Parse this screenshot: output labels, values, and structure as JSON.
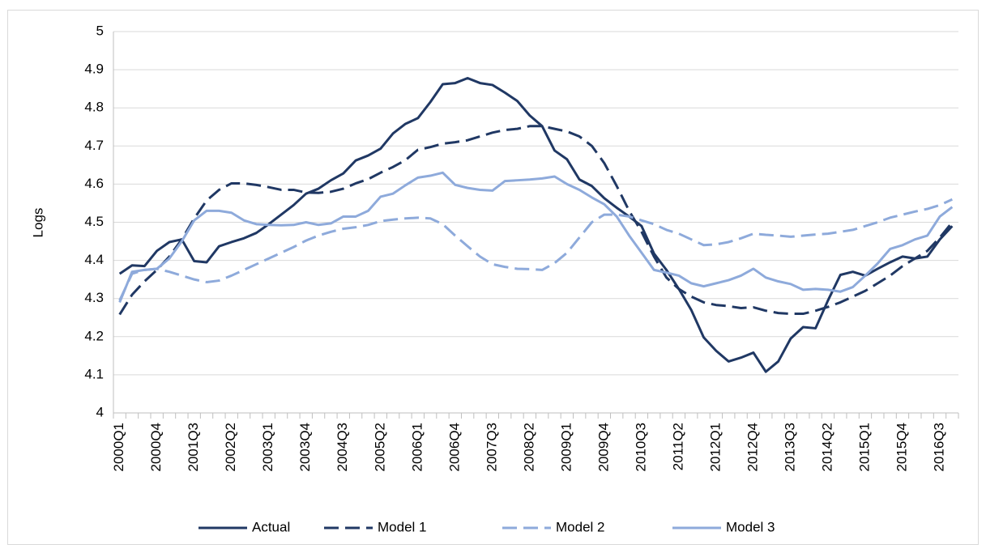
{
  "chart_data": {
    "type": "line",
    "ylabel": "Logs",
    "categories": [
      "2000Q1",
      null,
      null,
      "2000Q4",
      null,
      null,
      "2001Q3",
      null,
      null,
      "2002Q2",
      null,
      null,
      "2003Q1",
      null,
      null,
      "2003Q4",
      null,
      null,
      "2004Q3",
      null,
      null,
      "2005Q2",
      null,
      null,
      "2006Q1",
      null,
      null,
      "2006Q4",
      null,
      null,
      "2007Q3",
      null,
      null,
      "2008Q2",
      null,
      null,
      "2009Q1",
      null,
      null,
      "2009Q4",
      null,
      null,
      "2010Q3",
      null,
      null,
      "2011Q2",
      null,
      null,
      "2012Q1",
      null,
      null,
      "2012Q4",
      null,
      null,
      "2013Q3",
      null,
      null,
      "2014Q2",
      null,
      null,
      "2015Q1",
      null,
      null,
      "2015Q4",
      null,
      null,
      "2016Q3",
      null
    ],
    "series": [
      {
        "name": "Actual",
        "color": "#203864",
        "dash": false,
        "values": [
          4.365,
          4.387,
          4.385,
          4.425,
          4.448,
          4.455,
          4.398,
          4.395,
          4.437,
          4.448,
          4.458,
          4.472,
          4.495,
          4.52,
          4.545,
          4.575,
          4.588,
          4.61,
          4.628,
          4.662,
          4.675,
          4.693,
          4.733,
          4.758,
          4.773,
          4.815,
          4.862,
          4.865,
          4.878,
          4.865,
          4.86,
          4.84,
          4.818,
          4.78,
          4.752,
          4.688,
          4.665,
          4.612,
          4.595,
          4.563,
          4.538,
          4.515,
          4.49,
          4.418,
          4.375,
          4.325,
          4.27,
          4.198,
          4.163,
          4.135,
          4.145,
          4.158,
          4.108,
          4.135,
          4.195,
          4.225,
          4.222,
          4.295,
          4.362,
          4.37,
          4.36,
          4.378,
          4.395,
          4.41,
          4.405,
          4.41,
          4.455,
          4.49
        ]
      },
      {
        "name": "Model 1",
        "color": "#203864",
        "dash": true,
        "values": [
          4.258,
          4.31,
          4.345,
          4.375,
          4.41,
          4.455,
          4.51,
          4.557,
          4.585,
          4.602,
          4.602,
          4.598,
          4.592,
          4.585,
          4.585,
          4.578,
          4.577,
          4.58,
          4.588,
          4.602,
          4.613,
          4.63,
          4.645,
          4.663,
          4.69,
          4.697,
          4.706,
          4.71,
          4.715,
          4.725,
          4.735,
          4.742,
          4.745,
          4.752,
          4.752,
          4.745,
          4.738,
          4.725,
          4.7,
          4.655,
          4.595,
          4.53,
          4.475,
          4.41,
          4.355,
          4.325,
          4.305,
          4.29,
          4.283,
          4.28,
          4.275,
          4.277,
          4.268,
          4.262,
          4.26,
          4.26,
          4.268,
          4.278,
          4.29,
          4.305,
          4.32,
          4.34,
          4.36,
          4.385,
          4.405,
          4.425,
          4.46,
          4.5
        ]
      },
      {
        "name": "Model 2",
        "color": "#8eaadb",
        "dash": true,
        "values": [
          4.295,
          4.365,
          4.375,
          4.378,
          4.37,
          4.36,
          4.35,
          4.343,
          4.347,
          4.36,
          4.375,
          4.39,
          4.405,
          4.42,
          4.435,
          4.452,
          4.465,
          4.475,
          4.483,
          4.487,
          4.493,
          4.503,
          4.507,
          4.51,
          4.512,
          4.51,
          4.495,
          4.465,
          4.437,
          4.41,
          4.39,
          4.383,
          4.378,
          4.377,
          4.375,
          4.393,
          4.42,
          4.46,
          4.5,
          4.52,
          4.52,
          4.515,
          4.505,
          4.495,
          4.48,
          4.47,
          4.455,
          4.44,
          4.442,
          4.448,
          4.458,
          4.47,
          4.467,
          4.465,
          4.462,
          4.465,
          4.468,
          4.47,
          4.475,
          4.48,
          4.49,
          4.5,
          4.512,
          4.52,
          4.528,
          4.535,
          4.545,
          4.56
        ]
      },
      {
        "name": "Model 3",
        "color": "#8eaadb",
        "dash": false,
        "values": [
          4.29,
          4.37,
          4.375,
          4.378,
          4.405,
          4.45,
          4.505,
          4.53,
          4.53,
          4.525,
          4.505,
          4.495,
          4.493,
          4.492,
          4.493,
          4.5,
          4.493,
          4.497,
          4.515,
          4.515,
          4.53,
          4.567,
          4.575,
          4.597,
          4.617,
          4.622,
          4.63,
          4.598,
          4.59,
          4.585,
          4.583,
          4.608,
          4.61,
          4.612,
          4.615,
          4.62,
          4.6,
          4.585,
          4.565,
          4.547,
          4.515,
          4.465,
          4.42,
          4.375,
          4.368,
          4.36,
          4.34,
          4.332,
          4.34,
          4.348,
          4.36,
          4.378,
          4.355,
          4.345,
          4.338,
          4.323,
          4.325,
          4.323,
          4.318,
          4.33,
          4.36,
          4.392,
          4.43,
          4.44,
          4.455,
          4.465,
          4.515,
          4.54
        ]
      }
    ],
    "ylim": [
      4,
      5
    ],
    "yticks": [
      4,
      4.1,
      4.2,
      4.3,
      4.4,
      4.5,
      4.6,
      4.7,
      4.8,
      4.9,
      5
    ],
    "grid": true,
    "legend": "bottom"
  }
}
